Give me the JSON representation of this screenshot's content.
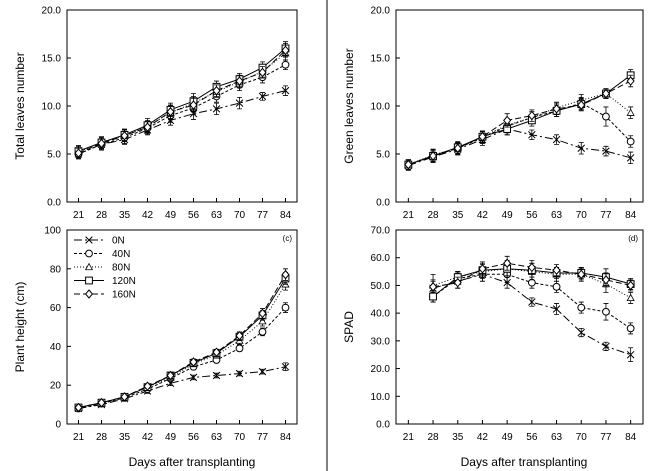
{
  "colors": {
    "line": "#000000",
    "marker_fill": "#ffffff",
    "background": "#ffffff"
  },
  "figure": {
    "common_xlabel_left": "Days after transplanting",
    "common_xlabel_right": "Days after transplanting"
  },
  "legend": {
    "entries": [
      "0N",
      "40N",
      "80N",
      "120N",
      "160N"
    ],
    "placement": "top-left of panel (c)"
  },
  "chart_data": [
    {
      "type": "line",
      "panel_label": "",
      "ylabel": "Total leaves number",
      "xlabel": "",
      "ylim": [
        0,
        20
      ],
      "yticks": [
        "0.0",
        "5.0",
        "10.0",
        "15.0",
        "20.0"
      ],
      "xticks": [
        "21",
        "28",
        "35",
        "42",
        "49",
        "56",
        "63",
        "70",
        "77",
        "84"
      ],
      "x": [
        21,
        28,
        35,
        42,
        49,
        56,
        63,
        70,
        77,
        84
      ],
      "grid": false,
      "series": [
        {
          "name": "0N",
          "marker": "x",
          "dash": "8,3,2,3",
          "values": [
            5.0,
            6.0,
            6.5,
            7.5,
            8.5,
            9.2,
            9.7,
            10.3,
            11.0,
            11.6
          ],
          "err": [
            0.5,
            0.5,
            0.5,
            0.5,
            0.5,
            0.6,
            0.6,
            0.6,
            0.4,
            0.5
          ]
        },
        {
          "name": "40N",
          "marker": "circle",
          "dash": "3,2",
          "values": [
            5.0,
            6.0,
            6.7,
            7.7,
            9.0,
            9.8,
            11.0,
            12.2,
            13.0,
            14.3
          ],
          "err": [
            0.5,
            0.6,
            0.6,
            0.6,
            0.7,
            0.7,
            0.6,
            0.6,
            0.6,
            0.5
          ]
        },
        {
          "name": "80N",
          "marker": "triangle",
          "dash": "1,2",
          "values": [
            5.2,
            6.2,
            6.9,
            7.9,
            9.3,
            10.3,
            11.5,
            12.5,
            13.6,
            15.5
          ],
          "err": [
            0.6,
            0.6,
            0.6,
            0.6,
            0.7,
            0.7,
            0.6,
            0.6,
            0.6,
            0.7
          ]
        },
        {
          "name": "120N",
          "marker": "square",
          "dash": "",
          "values": [
            5.3,
            6.2,
            7.0,
            8.0,
            9.6,
            10.5,
            12.0,
            12.8,
            14.0,
            16.0
          ],
          "err": [
            0.6,
            0.6,
            0.6,
            0.7,
            0.7,
            0.8,
            0.6,
            0.6,
            0.6,
            0.7
          ]
        },
        {
          "name": "160N",
          "marker": "diamond",
          "dash": "6,3",
          "values": [
            5.1,
            6.1,
            6.9,
            7.8,
            9.4,
            10.1,
            11.6,
            12.6,
            13.5,
            15.8
          ],
          "err": [
            0.5,
            0.6,
            0.6,
            0.6,
            0.7,
            0.7,
            0.6,
            0.6,
            0.6,
            0.7
          ]
        }
      ]
    },
    {
      "type": "line",
      "panel_label": "",
      "ylabel": "Green leaves number",
      "xlabel": "",
      "ylim": [
        0,
        20
      ],
      "yticks": [
        "0.0",
        "5.0",
        "10.0",
        "15.0",
        "20.0"
      ],
      "xticks": [
        "21",
        "28",
        "35",
        "42",
        "49",
        "56",
        "63",
        "70",
        "77",
        "84"
      ],
      "x": [
        21,
        28,
        35,
        42,
        49,
        56,
        63,
        70,
        77,
        84
      ],
      "grid": false,
      "series": [
        {
          "name": "0N",
          "marker": "x",
          "dash": "8,3,2,3",
          "values": [
            3.8,
            4.7,
            5.5,
            6.5,
            7.6,
            7.0,
            6.5,
            5.6,
            5.3,
            4.6
          ],
          "err": [
            0.5,
            0.6,
            0.6,
            0.6,
            0.6,
            0.5,
            0.5,
            0.6,
            0.5,
            0.6
          ]
        },
        {
          "name": "40N",
          "marker": "circle",
          "dash": "3,2",
          "values": [
            3.9,
            4.8,
            5.6,
            6.7,
            7.9,
            8.8,
            9.5,
            10.3,
            8.9,
            6.3
          ],
          "err": [
            0.5,
            0.6,
            0.6,
            0.6,
            0.7,
            0.6,
            0.6,
            0.6,
            1.0,
            0.6
          ]
        },
        {
          "name": "80N",
          "marker": "triangle",
          "dash": "1,2",
          "values": [
            3.9,
            4.9,
            5.6,
            6.8,
            8.0,
            8.8,
            9.8,
            10.6,
            11.3,
            9.3
          ],
          "err": [
            0.5,
            0.6,
            0.6,
            0.6,
            0.6,
            0.6,
            0.6,
            0.6,
            0.5,
            0.6
          ]
        },
        {
          "name": "120N",
          "marker": "square",
          "dash": "",
          "values": [
            3.9,
            4.8,
            5.7,
            6.8,
            7.6,
            8.5,
            9.5,
            10.2,
            11.3,
            13.2
          ],
          "err": [
            0.5,
            0.6,
            0.6,
            0.6,
            0.6,
            0.6,
            0.6,
            0.6,
            0.5,
            0.6
          ]
        },
        {
          "name": "160N",
          "marker": "diamond",
          "dash": "6,3",
          "values": [
            3.9,
            4.8,
            5.6,
            6.8,
            8.5,
            9.0,
            9.7,
            10.1,
            11.3,
            12.6
          ],
          "err": [
            0.5,
            0.6,
            0.6,
            0.6,
            0.7,
            0.6,
            0.6,
            0.6,
            0.5,
            0.6
          ]
        }
      ]
    },
    {
      "type": "line",
      "panel_label": "(c)",
      "ylabel": "Plant height (cm)",
      "xlabel": "Days after transplanting",
      "ylim": [
        0,
        100
      ],
      "yticks": [
        "0",
        "20",
        "40",
        "60",
        "80",
        "100"
      ],
      "xticks": [
        "21",
        "28",
        "35",
        "42",
        "49",
        "56",
        "63",
        "70",
        "77",
        "84"
      ],
      "x": [
        21,
        28,
        35,
        42,
        49,
        56,
        63,
        70,
        77,
        84
      ],
      "grid": false,
      "series": [
        {
          "name": "0N",
          "marker": "x",
          "dash": "8,3,2,3",
          "values": [
            8.0,
            10.0,
            13.0,
            17.0,
            21.0,
            24.0,
            25.0,
            26.0,
            27.0,
            29.5
          ],
          "err": [
            1.0,
            1.0,
            1.0,
            1.2,
            1.2,
            1.2,
            1.2,
            1.2,
            1.2,
            2.0
          ]
        },
        {
          "name": "40N",
          "marker": "circle",
          "dash": "3,2",
          "values": [
            8.0,
            10.5,
            13.5,
            18.0,
            23.5,
            29.5,
            33.0,
            39.0,
            47.5,
            60.0
          ],
          "err": [
            1.0,
            1.0,
            1.0,
            1.2,
            1.3,
            1.5,
            1.5,
            1.5,
            2.0,
            2.5
          ]
        },
        {
          "name": "80N",
          "marker": "triangle",
          "dash": "1,2",
          "values": [
            8.5,
            10.5,
            14.0,
            19.0,
            24.0,
            31.0,
            35.5,
            43.0,
            53.0,
            72.0
          ],
          "err": [
            1.0,
            1.0,
            1.0,
            1.2,
            1.5,
            1.5,
            1.5,
            2.0,
            2.5,
            3.0
          ]
        },
        {
          "name": "120N",
          "marker": "square",
          "dash": "",
          "values": [
            8.5,
            11.0,
            14.0,
            19.0,
            25.0,
            31.5,
            36.5,
            45.0,
            56.0,
            75.0
          ],
          "err": [
            1.0,
            1.0,
            1.0,
            1.2,
            1.5,
            1.5,
            1.5,
            2.0,
            2.5,
            3.0
          ]
        },
        {
          "name": "160N",
          "marker": "diamond",
          "dash": "6,3",
          "values": [
            8.5,
            11.0,
            14.0,
            19.5,
            25.0,
            32.0,
            37.0,
            45.5,
            57.0,
            77.0
          ],
          "err": [
            1.0,
            1.0,
            1.0,
            1.2,
            1.5,
            1.5,
            1.5,
            2.0,
            2.5,
            3.0
          ]
        }
      ]
    },
    {
      "type": "line",
      "panel_label": "(d)",
      "ylabel": "SPAD",
      "xlabel": "Days after transplanting",
      "ylim": [
        0,
        70
      ],
      "yticks": [
        "0.0",
        "10.0",
        "20.0",
        "30.0",
        "40.0",
        "50.0",
        "60.0",
        "70.0"
      ],
      "xticks": [
        "21",
        "28",
        "35",
        "42",
        "49",
        "56",
        "63",
        "70",
        "77",
        "84"
      ],
      "x": [
        28,
        35,
        42,
        49,
        56,
        63,
        70,
        77,
        84
      ],
      "grid": false,
      "series": [
        {
          "name": "0N",
          "marker": "x",
          "dash": "8,3,2,3",
          "values": [
            49.0,
            51.5,
            54.0,
            51.0,
            44.0,
            41.5,
            33.0,
            28.0,
            25.0
          ],
          "err": [
            3.0,
            2.5,
            2.5,
            2.0,
            1.5,
            2.0,
            1.5,
            1.5,
            2.5
          ]
        },
        {
          "name": "40N",
          "marker": "circle",
          "dash": "3,2",
          "values": [
            46.0,
            52.5,
            54.0,
            54.0,
            51.0,
            49.5,
            42.0,
            40.5,
            34.5
          ],
          "err": [
            2.0,
            2.0,
            2.5,
            3.0,
            2.0,
            2.0,
            2.0,
            3.0,
            2.0
          ]
        },
        {
          "name": "80N",
          "marker": "triangle",
          "dash": "1,2",
          "values": [
            50.0,
            53.0,
            55.0,
            56.0,
            55.0,
            54.0,
            54.0,
            50.5,
            45.5
          ],
          "err": [
            4.0,
            2.0,
            2.5,
            3.0,
            3.0,
            2.5,
            2.5,
            3.0,
            2.0
          ]
        },
        {
          "name": "120N",
          "marker": "square",
          "dash": "",
          "values": [
            46.0,
            53.0,
            55.5,
            56.0,
            55.5,
            54.5,
            54.5,
            53.0,
            50.5
          ],
          "err": [
            2.0,
            2.0,
            2.5,
            2.5,
            2.5,
            2.0,
            2.0,
            3.0,
            2.0
          ]
        },
        {
          "name": "160N",
          "marker": "diamond",
          "dash": "6,3",
          "values": [
            49.5,
            51.0,
            56.0,
            58.0,
            56.5,
            55.5,
            54.0,
            52.0,
            50.0
          ],
          "err": [
            2.0,
            2.0,
            2.5,
            2.5,
            2.5,
            2.0,
            2.0,
            2.5,
            2.0
          ]
        }
      ]
    }
  ]
}
